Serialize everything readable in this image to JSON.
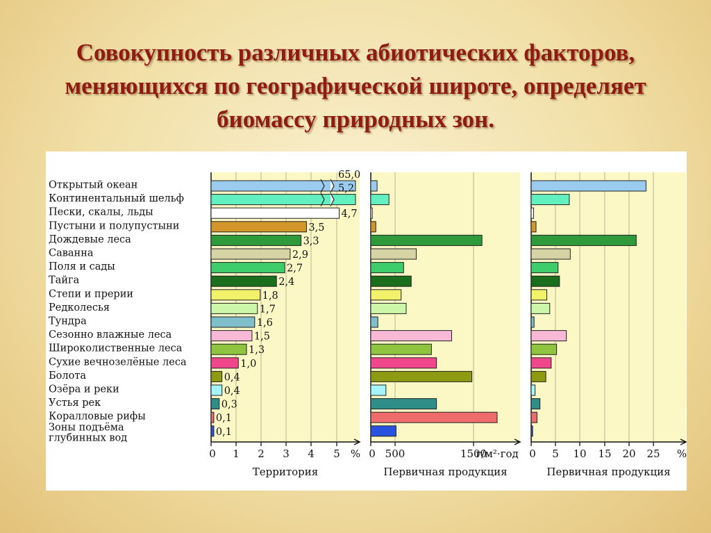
{
  "title": "Совокупность различных абиотических факторов, меняющихся по географической широте, определяет биомассу природных зон.",
  "chart_data": {
    "type": "bar",
    "orientation": "horizontal",
    "categories": [
      "Открытый океан",
      "Континентальный шельф",
      "Пески, скалы, льды",
      "Пустыни и полупустыни",
      "Дождевые леса",
      "Саванна",
      "Поля и сады",
      "Тайга",
      "Степи и прерии",
      "Редколесья",
      "Тундра",
      "Сезонно влажные леса",
      "Широколиственные леса",
      "Сухие вечнозелёные леса",
      "Болота",
      "Озёра и реки",
      "Устья рек",
      "Коралловые рифы",
      "Зоны подъёма глубинных вод"
    ],
    "colors": [
      "#9ccbf0",
      "#62f0c0",
      "#ffffff",
      "#d4962a",
      "#2f9a3a",
      "#d6d3a4",
      "#3fcc6a",
      "#1b6e1c",
      "#f2f26a",
      "#ccf7a8",
      "#7fbfcb",
      "#f8b9d6",
      "#8fc43e",
      "#f0468c",
      "#8d9a12",
      "#a4f4ff",
      "#2f8f88",
      "#ef6c6c",
      "#2a52e0"
    ],
    "panels": [
      {
        "xlabel": "Территория",
        "unit": "%",
        "ticks": [
          "0",
          "1",
          "2",
          "3",
          "4",
          "5"
        ],
        "xlim": [
          0,
          5
        ],
        "values": [
          65.0,
          5.2,
          4.7,
          3.5,
          3.3,
          2.9,
          2.7,
          2.4,
          1.8,
          1.7,
          1.6,
          1.5,
          1.3,
          1.0,
          0.4,
          0.4,
          0.3,
          0.1,
          0.1
        ],
        "value_labels": [
          "65,0",
          "5,2",
          "4,7",
          "3,5",
          "3,3",
          "2,9",
          "2,7",
          "2,4",
          "1,8",
          "1,7",
          "1,6",
          "1,5",
          "1,3",
          "1,0",
          "0,4",
          "0,4",
          "0,3",
          "0,1",
          "0,1"
        ]
      },
      {
        "xlabel": "Первичная продукция",
        "unit": "г/м²·год",
        "ticks": [
          "0",
          "500",
          "1500"
        ],
        "xlim": [
          0,
          2500
        ],
        "values": [
          125,
          360,
          30,
          100,
          2200,
          900,
          650,
          800,
          600,
          700,
          140,
          1600,
          1200,
          1300,
          2000,
          300,
          1300,
          2500,
          500
        ]
      },
      {
        "xlabel": "Первичная продукция",
        "unit": "%",
        "ticks": [
          "0",
          "5",
          "10",
          "15",
          "20",
          "25"
        ],
        "xlim": [
          0,
          25
        ],
        "values": [
          23.5,
          7.8,
          0.5,
          1.0,
          21.5,
          8.0,
          5.5,
          5.8,
          3.2,
          3.8,
          0.6,
          7.2,
          5.2,
          4.1,
          3.0,
          0.8,
          1.8,
          1.2,
          0.3
        ]
      }
    ]
  }
}
